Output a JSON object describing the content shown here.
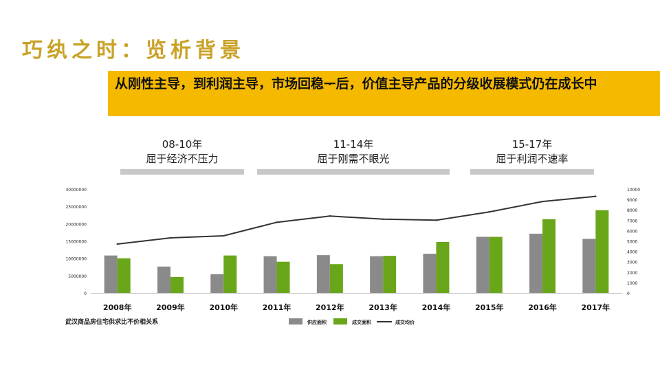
{
  "page": {
    "title": "巧纨之时：览析背景",
    "banner": "从刚性主导，到利润主导，市场回稳ᅮ后，价值主导产品的分级收展模式仍在成长中"
  },
  "phases": [
    {
      "range": "08-10年",
      "desc": "屈于经济不压力"
    },
    {
      "range": "11-14年",
      "desc": "屈于刚需不眼光"
    },
    {
      "range": "15-17年",
      "desc": "屈于利润不速率"
    }
  ],
  "colors": {
    "title": "#c9a227",
    "banner": "#f5b900",
    "supply": "#8a8a8a",
    "deal": "#6aa61a",
    "price": "#333333"
  },
  "chart_data": {
    "type": "bar",
    "caption": "武汉商品房住宅供求比不价相关系",
    "categories": [
      "2008年",
      "2009年",
      "2010年",
      "2011年",
      "2012年",
      "2013年",
      "2014年",
      "2015年",
      "2016年",
      "2017年"
    ],
    "left_ticks": [
      "30000000",
      "25000000",
      "20000000",
      "15000000",
      "10000000",
      "5000000",
      "0"
    ],
    "right_ticks": [
      "10000",
      "9000",
      "8000",
      "7000",
      "6000",
      "5000",
      "4000",
      "3000",
      "2000",
      "1000",
      "0"
    ],
    "ylim_left": [
      0,
      30000000
    ],
    "ylim_right": [
      0,
      10000
    ],
    "series": [
      {
        "name": "供应面积",
        "type": "bar",
        "axis": "left",
        "values": [
          10800000,
          7600000,
          5400000,
          10600000,
          10900000,
          10600000,
          11300000,
          16200000,
          17100000,
          15600000
        ]
      },
      {
        "name": "成交面积",
        "type": "bar",
        "axis": "left",
        "values": [
          10000000,
          4600000,
          10800000,
          9000000,
          8300000,
          10700000,
          14700000,
          16200000,
          21300000,
          23900000
        ]
      },
      {
        "name": "成交均价",
        "type": "line",
        "axis": "right",
        "values": [
          4700,
          5300,
          5500,
          6800,
          7400,
          7100,
          7000,
          7800,
          8800,
          9300
        ]
      }
    ],
    "legend_position": "bottom-center"
  }
}
